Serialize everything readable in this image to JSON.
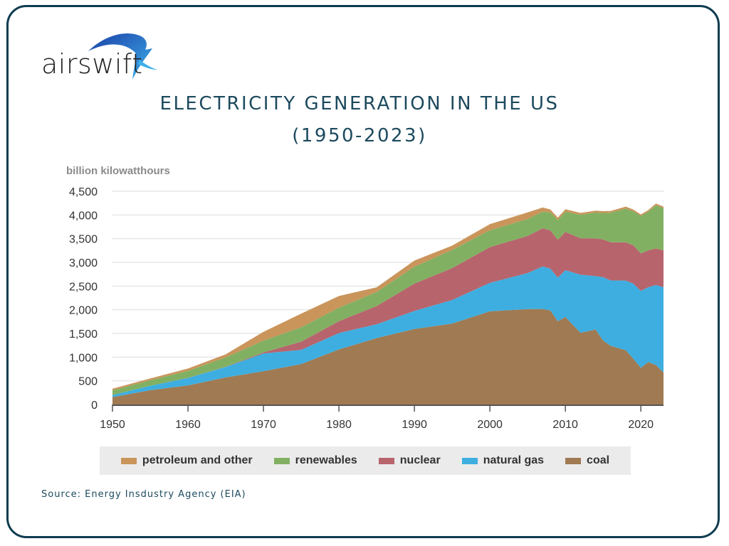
{
  "brand": {
    "logo_text": "airswift",
    "border_color": "#0f3c4f"
  },
  "header": {
    "title": "ELECTRICITY GENERATION IN THE US",
    "subtitle": "(1950-2023)"
  },
  "source": "Source: Energy Insdustry Agency (EIA)",
  "chart_data": {
    "type": "area",
    "stacked": true,
    "ylabel": "billion kilowatthours",
    "xlabel": "",
    "xlim": [
      1950,
      2023
    ],
    "ylim": [
      0,
      4500
    ],
    "yticks": [
      "0",
      "500",
      "1,000",
      "1,500",
      "2,000",
      "2,500",
      "3,000",
      "3,500",
      "4,000",
      "4,500"
    ],
    "xticks": [
      "1950",
      "1960",
      "1970",
      "1980",
      "1990",
      "2000",
      "2010",
      "2020"
    ],
    "grid": true,
    "legend_placement": "bottom",
    "x": [
      1950,
      1955,
      1960,
      1965,
      1970,
      1975,
      1980,
      1985,
      1990,
      1995,
      2000,
      2005,
      2007,
      2008,
      2009,
      2010,
      2012,
      2014,
      2015,
      2016,
      2018,
      2019,
      2020,
      2021,
      2022,
      2023
    ],
    "series": [
      {
        "name": "coal",
        "color": "#a07a52",
        "values": [
          155,
          301,
          403,
          571,
          704,
          853,
          1162,
          1402,
          1594,
          1709,
          1966,
          2013,
          2016,
          1986,
          1756,
          1847,
          1514,
          1582,
          1352,
          1239,
          1146,
          965,
          774,
          898,
          832,
          675
        ]
      },
      {
        "name": "natural gas",
        "color": "#3eaee0",
        "values": [
          45,
          95,
          158,
          222,
          373,
          300,
          346,
          292,
          380,
          496,
          601,
          761,
          897,
          883,
          921,
          988,
          1226,
          1127,
          1335,
          1379,
          1469,
          1586,
          1624,
          1579,
          1689,
          1802
        ]
      },
      {
        "name": "nuclear",
        "color": "#b7646d",
        "values": [
          0,
          0,
          1,
          4,
          22,
          173,
          251,
          384,
          577,
          673,
          754,
          782,
          806,
          806,
          799,
          807,
          769,
          797,
          797,
          806,
          807,
          809,
          790,
          778,
          772,
          775
        ]
      },
      {
        "name": "renewables",
        "color": "#82b062",
        "values": [
          100,
          116,
          149,
          197,
          250,
          303,
          285,
          295,
          357,
          385,
          356,
          357,
          352,
          380,
          418,
          427,
          494,
          546,
          556,
          624,
          713,
          718,
          792,
          815,
          913,
          894
        ]
      },
      {
        "name": "petroleum and other",
        "color": "#c9955b",
        "values": [
          34,
          37,
          48,
          65,
          184,
          289,
          246,
          100,
          130,
          90,
          130,
          140,
          85,
          60,
          50,
          50,
          40,
          40,
          40,
          35,
          40,
          35,
          30,
          35,
          35,
          30
        ]
      }
    ],
    "legend_order": [
      "petroleum and other",
      "renewables",
      "nuclear",
      "natural gas",
      "coal"
    ]
  }
}
